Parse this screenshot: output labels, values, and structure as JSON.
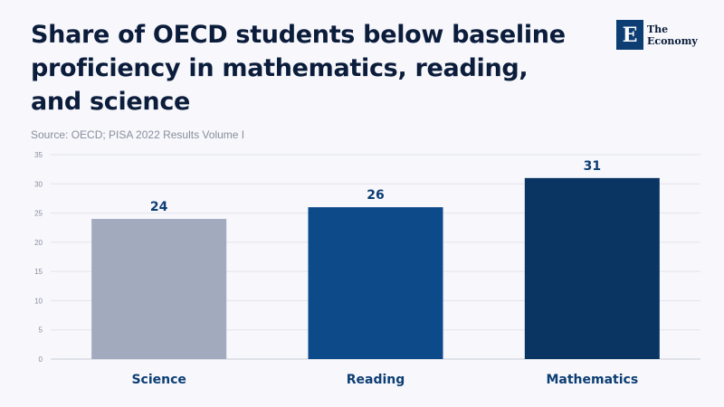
{
  "title": "Share of OECD students below baseline proficiency in mathematics, reading, and science",
  "source": "Source: OECD; PISA 2022 Results Volume I",
  "logo": {
    "mark": "E",
    "line1": "The",
    "line2": "Economy"
  },
  "chart_data": {
    "type": "bar",
    "title": "Share of OECD students below baseline proficiency in mathematics, reading, and science",
    "subtitle": "Source: OECD; PISA 2022 Results Volume I",
    "categories": [
      "Science",
      "Reading",
      "Mathematics"
    ],
    "values": [
      24,
      26,
      31
    ],
    "data_labels": [
      "24",
      "26",
      "31"
    ],
    "colors": [
      "#a2aabe",
      "#0d4a8a",
      "#0a3563"
    ],
    "ylim": [
      0,
      35
    ],
    "yticks": [
      0,
      5,
      10,
      15,
      20,
      25,
      30,
      35
    ],
    "ytick_labels": [
      "0",
      "5",
      "10",
      "15",
      "20",
      "25",
      "30",
      "35"
    ],
    "xlabel": "",
    "ylabel": "",
    "grid": true,
    "legend": "none"
  }
}
